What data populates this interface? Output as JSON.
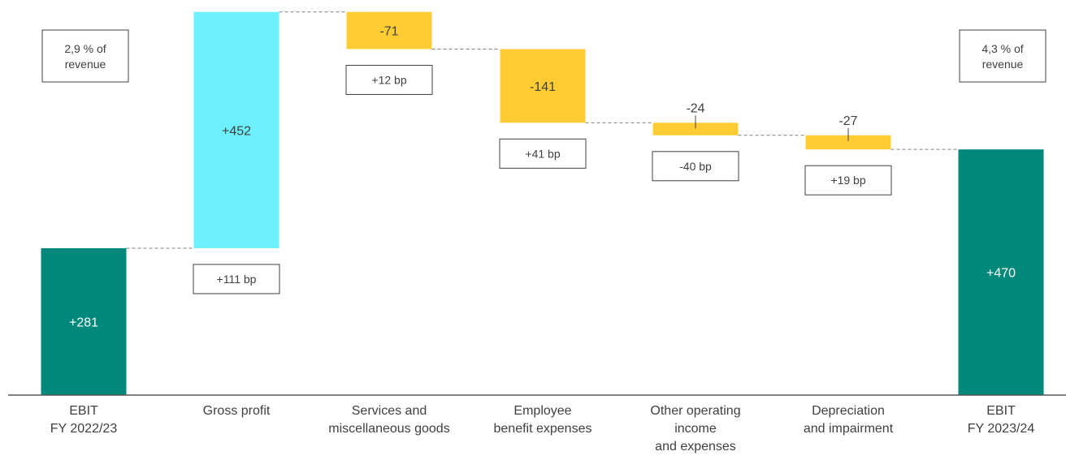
{
  "chart_data": {
    "type": "waterfall",
    "categories": [
      [
        "EBIT",
        "FY 2022/23"
      ],
      [
        "Gross profit"
      ],
      [
        "Services and",
        "miscellaneous goods"
      ],
      [
        "Employee",
        "benefit expenses"
      ],
      [
        "Other operating",
        "income",
        "and expenses"
      ],
      [
        "Depreciation",
        "and impairment"
      ],
      [
        "EBIT",
        "FY 2023/24"
      ]
    ],
    "steps": [
      {
        "kind": "total",
        "value": 281,
        "label": "+281",
        "bp": null
      },
      {
        "kind": "delta",
        "value": 452,
        "label": "+452",
        "bp": "+111 bp"
      },
      {
        "kind": "delta",
        "value": -71,
        "label": "-71",
        "bp": "+12 bp"
      },
      {
        "kind": "delta",
        "value": -141,
        "label": "-141",
        "bp": "+41 bp"
      },
      {
        "kind": "delta",
        "value": -24,
        "label": "-24",
        "bp": "-40 bp"
      },
      {
        "kind": "delta",
        "value": -27,
        "label": "-27",
        "bp": "+19 bp"
      },
      {
        "kind": "total",
        "value": 470,
        "label": "+470",
        "bp": null
      }
    ],
    "margin_notes": {
      "start": [
        "2,9 % of",
        "revenue"
      ],
      "end": [
        "4,3 % of",
        "revenue"
      ]
    },
    "ylim": [
      0,
      745
    ],
    "colors": {
      "total": "#00897B",
      "increase": "#6BF0FC",
      "decrease": "#FFCC33",
      "connector": "#808080",
      "axis": "#595959",
      "box_border": "#404040",
      "text_dark": "#404040",
      "text_light": "#FFFFFF"
    }
  }
}
